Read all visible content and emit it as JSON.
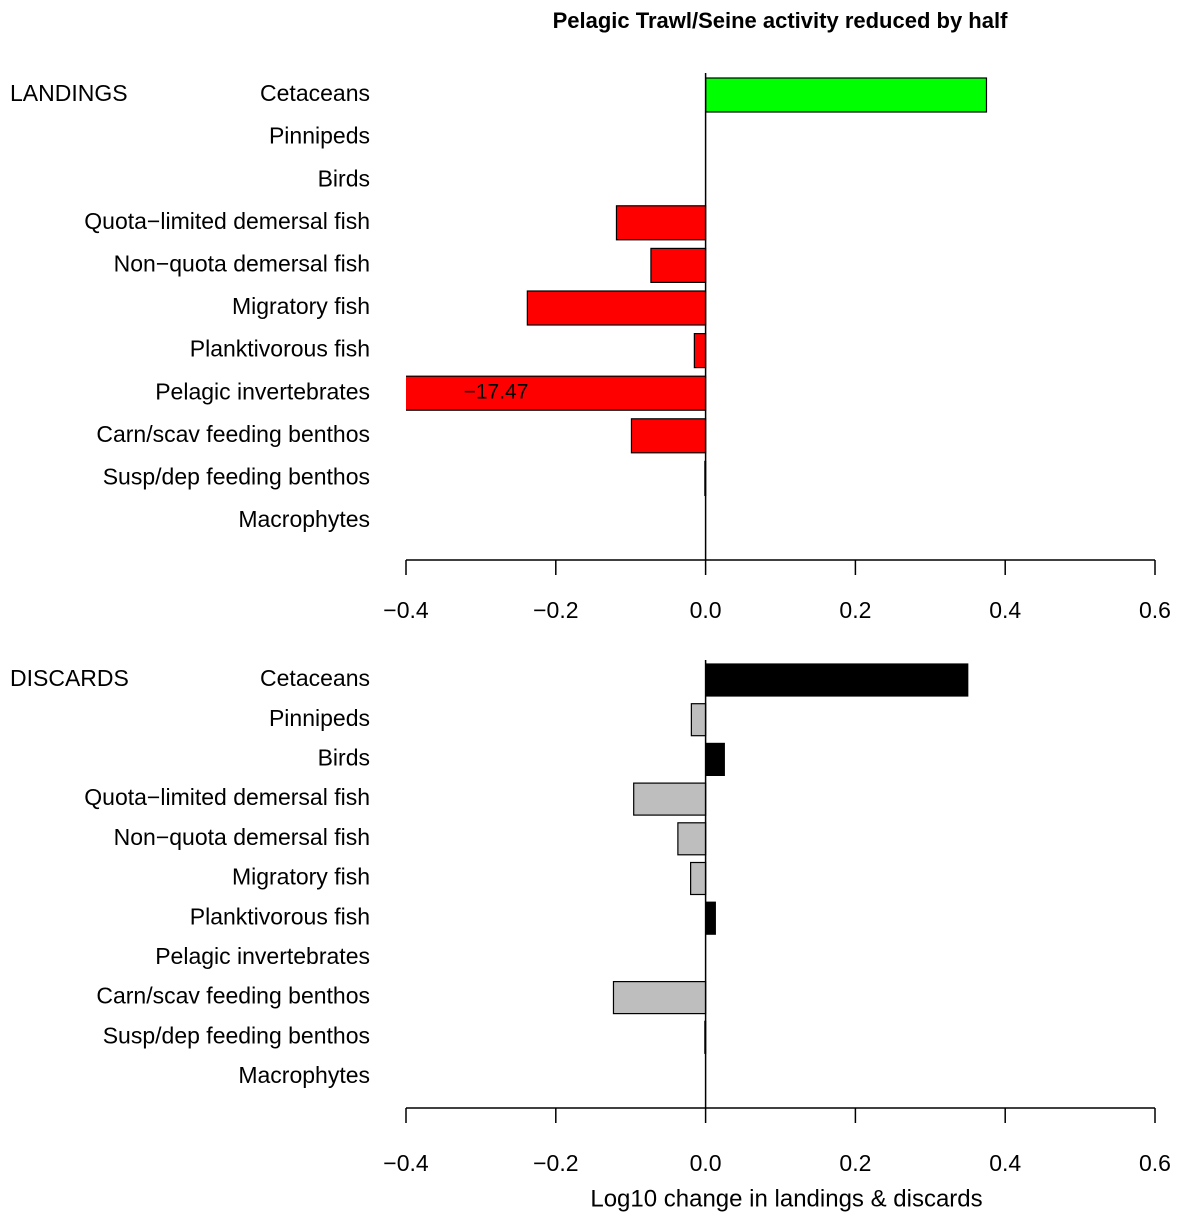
{
  "chart_data": [
    {
      "type": "barh",
      "title": "Pelagic Trawl/Seine activity reduced by half",
      "panel_label": "LANDINGS",
      "categories": [
        "Cetaceans",
        "Pinnipeds",
        "Birds",
        "Quota−limited demersal fish",
        "Non−quota demersal fish",
        "Migratory fish",
        "Planktivorous fish",
        "Pelagic invertebrates",
        "Carn/scav feeding benthos",
        "Susp/dep feeding benthos",
        "Macrophytes"
      ],
      "values": [
        0.375,
        0,
        0,
        -0.119,
        -0.073,
        -0.238,
        -0.015,
        -17.47,
        -0.099,
        -0.001,
        0
      ],
      "value_labels": [
        null,
        null,
        null,
        null,
        null,
        null,
        null,
        "−17.47",
        null,
        null,
        null
      ],
      "color_positive": "#00ff00",
      "color_negative": "#ff0000",
      "xlim": [
        -0.4,
        0.6
      ],
      "xticks": [
        {
          "value": -0.4,
          "label": "−0.4"
        },
        {
          "value": -0.2,
          "label": "−0.2"
        },
        {
          "value": 0,
          "label": "0.0"
        },
        0.2,
        0.4,
        0.6
      ]
    },
    {
      "type": "barh",
      "panel_label": "DISCARDS",
      "x_label": "Log10 change in landings & discards",
      "categories": [
        "Cetaceans",
        "Pinnipeds",
        "Birds",
        "Quota−limited demersal fish",
        "Non−quota demersal fish",
        "Migratory fish",
        "Planktivorous fish",
        "Pelagic invertebrates",
        "Carn/scav feeding benthos",
        "Susp/dep feeding benthos",
        "Macrophytes"
      ],
      "values": [
        0.35,
        -0.019,
        0.025,
        -0.096,
        -0.037,
        -0.02,
        0.013,
        0,
        -0.123,
        -0.001,
        0
      ],
      "color_positive": "#000000",
      "color_negative": "#bebebe",
      "xlim": [
        -0.4,
        0.6
      ],
      "xticks": [
        {
          "value": -0.4,
          "label": "−0.4"
        },
        {
          "value": -0.2,
          "label": "−0.2"
        },
        {
          "value": 0,
          "label": "0.0"
        },
        0.2,
        0.4,
        0.6
      ]
    }
  ]
}
